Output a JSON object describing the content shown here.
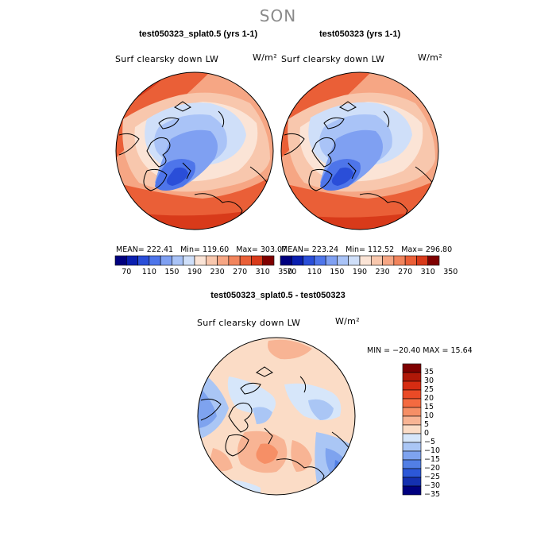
{
  "figure": {
    "season": "SON",
    "diff_title": "test050323_splat0.5 - test050323",
    "diff_range": "MIN = −20.40 MAX =  15.64"
  },
  "panels": [
    {
      "title": "test050323_splat0.5 (yrs 1-1)",
      "variable": "Surf clearsky down LW",
      "units": "W/m²",
      "mean": "222.41",
      "min": "119.60",
      "max": "303.07"
    },
    {
      "title": "test050323 (yrs 1-1)",
      "variable": "Surf clearsky down LW",
      "units": "W/m²",
      "mean": "223.24",
      "min": "112.52",
      "max": "296.80"
    }
  ],
  "diff_panel": {
    "variable": "Surf clearsky down LW",
    "units": "W/m²"
  },
  "abs_colorbar": {
    "ticks": [
      "70",
      "110",
      "150",
      "190",
      "230",
      "270",
      "310",
      "350"
    ],
    "colors": [
      "#00007f",
      "#0a1fb0",
      "#2a4ed8",
      "#4e75ea",
      "#7fa0f2",
      "#a9c3f7",
      "#cfdff9",
      "#fbe4d6",
      "#f8c7ad",
      "#f6a684",
      "#f1845c",
      "#ea5f37",
      "#d83a1a",
      "#7f0000"
    ]
  },
  "diff_colorbar": {
    "ticks": [
      "35",
      "30",
      "25",
      "20",
      "15",
      "10",
      "5",
      "0",
      "−5",
      "−10",
      "−15",
      "−20",
      "−25",
      "−30",
      "−35"
    ],
    "colors": [
      "#7f0000",
      "#b01808",
      "#d62c12",
      "#ea4a26",
      "#f46a40",
      "#f68f66",
      "#f8b494",
      "#fbdcc6",
      "#d6e6fa",
      "#aac6f5",
      "#7ea3ef",
      "#527fe5",
      "#2c58d8",
      "#1430b0",
      "#00007f"
    ]
  },
  "chart_data": {
    "type": "heatmap",
    "title": "SON",
    "projection": "north polar stereographic",
    "maps": [
      {
        "title": "test050323_splat0.5 (yrs 1-1)",
        "variable": "Surf clearsky down LW",
        "units": "W/m2",
        "mean": 222.41,
        "min": 119.6,
        "max": 303.07
      },
      {
        "title": "test050323 (yrs 1-1)",
        "variable": "Surf clearsky down LW",
        "units": "W/m2",
        "mean": 223.24,
        "min": 112.52,
        "max": 296.8
      },
      {
        "title": "test050323_splat0.5 - test050323",
        "variable": "Surf clearsky down LW",
        "units": "W/m2",
        "min": -20.4,
        "max": 15.64
      }
    ],
    "colorbar_absolute": [
      70,
      110,
      150,
      190,
      230,
      270,
      310,
      350
    ],
    "colorbar_difference": [
      35,
      30,
      25,
      20,
      15,
      10,
      5,
      0,
      -5,
      -10,
      -15,
      -20,
      -25,
      -30,
      -35
    ]
  }
}
